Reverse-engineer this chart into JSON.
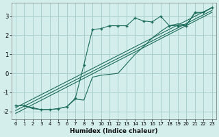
{
  "xlabel": "Humidex (Indice chaleur)",
  "ylabel": "",
  "background_color": "#d4eeec",
  "grid_color": "#aacfcc",
  "line_color": "#1a6b5a",
  "xlim": [
    -0.5,
    23.5
  ],
  "ylim": [
    -2.4,
    3.7
  ],
  "xticks": [
    0,
    1,
    2,
    3,
    4,
    5,
    6,
    7,
    8,
    9,
    10,
    11,
    12,
    13,
    14,
    15,
    16,
    17,
    18,
    19,
    20,
    21,
    22,
    23
  ],
  "yticks": [
    -2,
    -1,
    0,
    1,
    2,
    3
  ],
  "curve_x": [
    0,
    1,
    2,
    3,
    4,
    5,
    6,
    7,
    8,
    9,
    10,
    11,
    12,
    13,
    14,
    15,
    16,
    17,
    18,
    19,
    20,
    21,
    22,
    23
  ],
  "curve_y": [
    -1.7,
    -1.7,
    -1.8,
    -1.9,
    -1.9,
    -1.85,
    -1.75,
    -1.3,
    0.45,
    2.3,
    2.35,
    2.5,
    2.5,
    2.5,
    2.9,
    2.75,
    2.7,
    3.0,
    2.5,
    2.5,
    2.5,
    3.2,
    3.2,
    3.45
  ],
  "line1_x": [
    0,
    23
  ],
  "line1_y": [
    -1.8,
    3.45
  ],
  "line2_x": [
    0,
    23
  ],
  "line2_y": [
    -1.95,
    3.3
  ],
  "line3_x": [
    0,
    23
  ],
  "line3_y": [
    -2.1,
    3.2
  ],
  "curve2_x": [
    0,
    1,
    2,
    3,
    4,
    5,
    6,
    7,
    8,
    9,
    10,
    11,
    12,
    13,
    14,
    15,
    16,
    17,
    18,
    19,
    20,
    21,
    22,
    23
  ],
  "curve2_y": [
    -1.7,
    -1.7,
    -1.85,
    -1.9,
    -1.9,
    -1.85,
    -1.75,
    -1.35,
    -1.4,
    -0.2,
    -0.1,
    -0.05,
    0.0,
    0.5,
    1.0,
    1.4,
    1.85,
    2.2,
    2.5,
    2.6,
    2.55,
    3.15,
    3.2,
    3.45
  ]
}
